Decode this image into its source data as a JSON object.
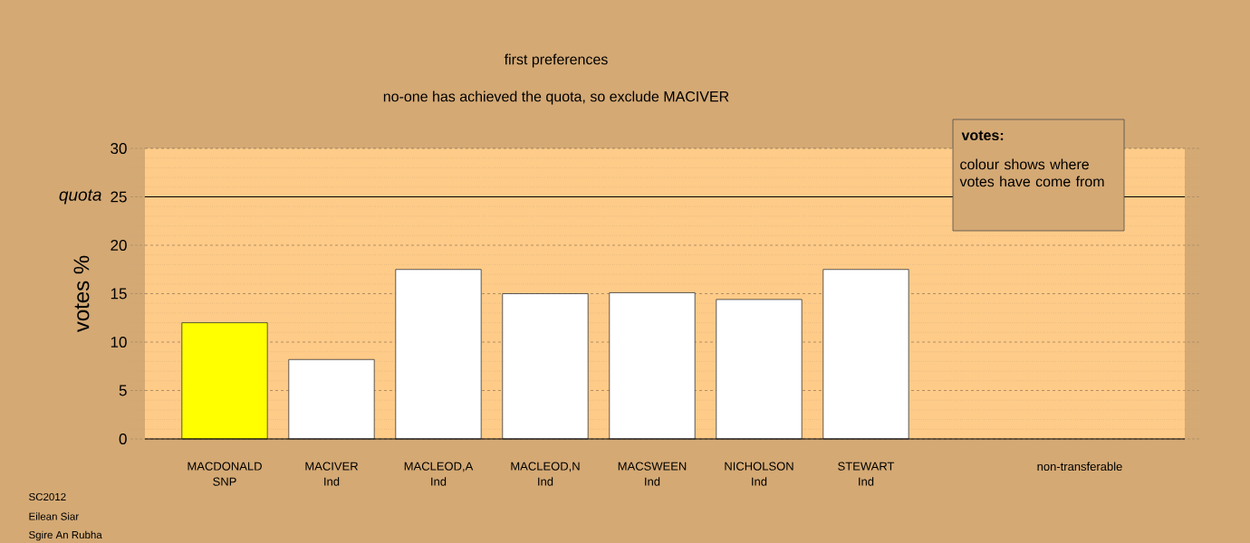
{
  "chart_data": {
    "type": "bar",
    "title": "first preferences",
    "subtitle": "no-one has achieved the quota, so exclude MACIVER",
    "ylabel": "votes %",
    "categories": [
      "MACDONALD SNP",
      "MACIVER Ind",
      "MACLEOD,A Ind",
      "MACLEOD,N Ind",
      "MACSWEEN Ind",
      "NICHOLSON Ind",
      "STEWART Ind",
      null,
      "non-transferable"
    ],
    "values": [
      12.0,
      8.2,
      17.5,
      15.0,
      15.1,
      14.4,
      17.5,
      null,
      null
    ],
    "colors": [
      "#ffff00",
      "#ffffff",
      "#ffffff",
      "#ffffff",
      "#ffffff",
      "#ffffff",
      "#ffffff",
      "#ffffff",
      "#ffffff"
    ],
    "ylim": [
      0,
      30
    ],
    "yticks": [
      0,
      5,
      10,
      15,
      20,
      25,
      30
    ],
    "grid": "y",
    "ref_lines": [
      {
        "axis": "y",
        "value": 25,
        "label": "quota"
      }
    ],
    "annotations": [
      "votes:",
      "colour shows where votes have come from",
      "SC2012",
      "Eilean Siar",
      "Sgire An Rubha"
    ]
  }
}
